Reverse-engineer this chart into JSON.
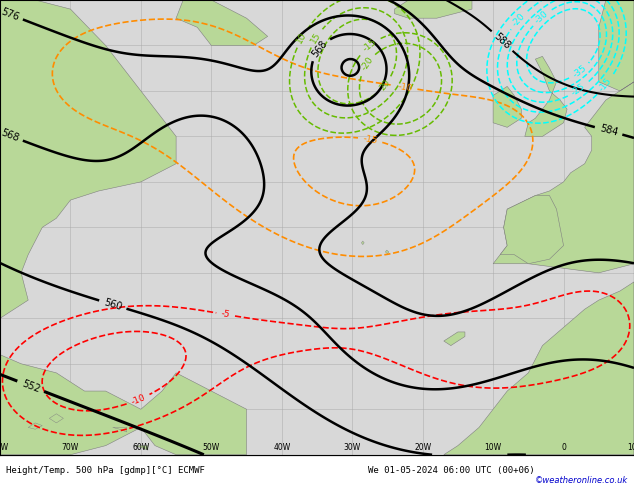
{
  "title_bottom_left": "Height/Temp. 500 hPa [gdmp][°C] ECMWF",
  "title_bottom_right": "We 01-05-2024 06:00 UTC (00+06)",
  "copyright": "©weatheronline.co.uk",
  "land_color": "#b8d898",
  "ocean_color": "#d8d8d8",
  "grid_color": "#aaaaaa",
  "figsize": [
    6.34,
    4.9
  ],
  "dpi": 100,
  "bottom_bar_color": "#ffffff",
  "bottom_text_color": "#000000",
  "copyright_color": "#0000cc",
  "bottom_bar_height": 0.072,
  "xlim": [
    -80,
    10
  ],
  "ylim": [
    15,
    65
  ]
}
